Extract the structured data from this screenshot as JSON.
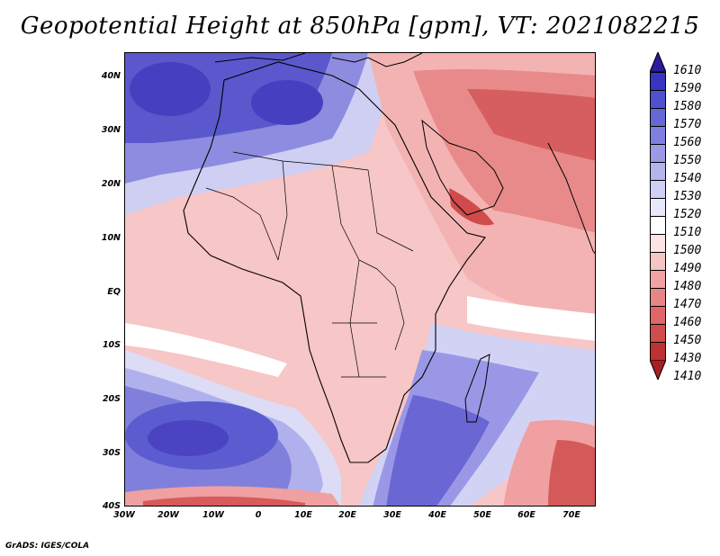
{
  "title": "Geopotential Height at 850hPa [gpm], VT: 2021082215",
  "credit": "GrADS: IGES/COLA",
  "lat_labels": [
    "40N",
    "30N",
    "20N",
    "10N",
    "EQ",
    "10S",
    "20S",
    "30S",
    "40S"
  ],
  "lon_labels": [
    "30W",
    "20W",
    "10W",
    "0",
    "10E",
    "20E",
    "30E",
    "40E",
    "50E",
    "60E",
    "70E"
  ],
  "colorbar": {
    "labels": [
      "1610",
      "1590",
      "1580",
      "1570",
      "1560",
      "1550",
      "1540",
      "1530",
      "1520",
      "1510",
      "1500",
      "1490",
      "1480",
      "1470",
      "1460",
      "1450",
      "1430",
      "1410"
    ],
    "colors": [
      "#2a1a9c",
      "#3a35c0",
      "#4f52cc",
      "#6668d6",
      "#7f80de",
      "#9a9ae6",
      "#b5b5ee",
      "#d0d0f5",
      "#e8e8fb",
      "#ffffff",
      "#fde3e3",
      "#f7c4c4",
      "#f0a3a3",
      "#e88585",
      "#df6767",
      "#d04b4b",
      "#bd3232",
      "#a82020"
    ]
  },
  "colors": {
    "ocean_south": "#6a68d4",
    "africa_fill": "#f7c6c6",
    "north_blue": "#5556c8",
    "arabia_red": "#e57a7a"
  }
}
